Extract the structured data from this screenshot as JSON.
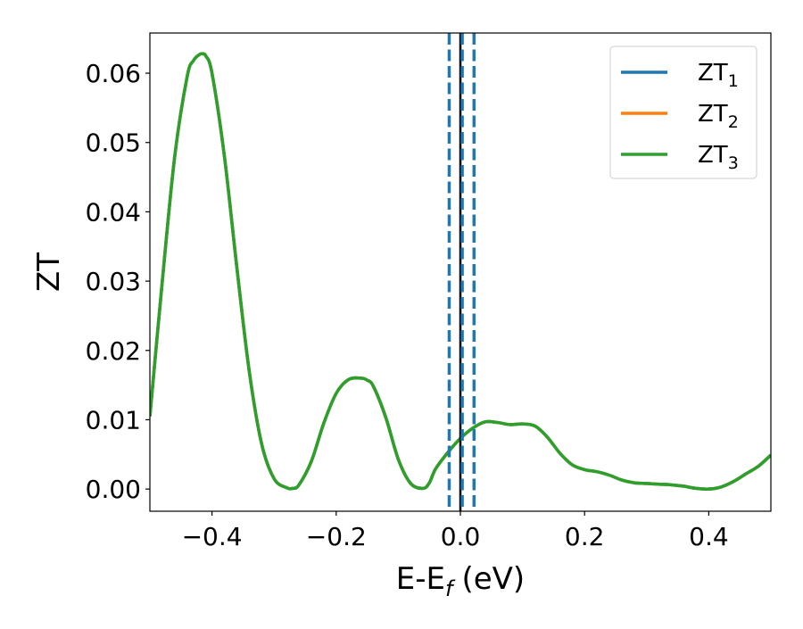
{
  "chart_data": {
    "type": "line",
    "title": "",
    "xlabel": "E-E",
    "xlabel_sub": "f",
    "xlabel_unit": "(eV)",
    "ylabel": "ZT",
    "xlim": [
      -0.5,
      0.5
    ],
    "ylim": [
      -0.0032,
      0.0658
    ],
    "grid": false,
    "legend_position": "top-right",
    "xticks": [
      -0.4,
      -0.2,
      0.0,
      0.2,
      0.4
    ],
    "xtick_labels": [
      "−0.4",
      "−0.2",
      "0.0",
      "0.2",
      "0.4"
    ],
    "yticks": [
      0.0,
      0.01,
      0.02,
      0.03,
      0.04,
      0.05,
      0.06
    ],
    "ytick_labels": [
      "0.00",
      "0.01",
      "0.02",
      "0.03",
      "0.04",
      "0.05",
      "0.06"
    ],
    "x": [
      -0.5,
      -0.48,
      -0.46,
      -0.44,
      -0.43,
      -0.42,
      -0.415,
      -0.41,
      -0.4,
      -0.38,
      -0.36,
      -0.34,
      -0.32,
      -0.3,
      -0.28,
      -0.27,
      -0.26,
      -0.24,
      -0.22,
      -0.2,
      -0.18,
      -0.16,
      -0.15,
      -0.14,
      -0.12,
      -0.1,
      -0.08,
      -0.06,
      -0.05,
      -0.04,
      -0.02,
      0.0,
      0.02,
      0.04,
      0.06,
      0.08,
      0.1,
      0.12,
      0.14,
      0.16,
      0.18,
      0.2,
      0.22,
      0.24,
      0.26,
      0.28,
      0.3,
      0.32,
      0.34,
      0.36,
      0.38,
      0.4,
      0.42,
      0.44,
      0.46,
      0.48,
      0.5
    ],
    "series": [
      {
        "name": "ZT",
        "name_sub": "1",
        "color": "#1f77b4",
        "values": [
          0.0105,
          0.03,
          0.048,
          0.0595,
          0.0618,
          0.0627,
          0.0628,
          0.0625,
          0.06,
          0.048,
          0.032,
          0.017,
          0.0065,
          0.0015,
          0.0002,
          0.0001,
          0.0006,
          0.004,
          0.0095,
          0.0138,
          0.0158,
          0.016,
          0.0157,
          0.0148,
          0.0103,
          0.0043,
          0.0008,
          0.0001,
          0.0009,
          0.0029,
          0.0053,
          0.0073,
          0.0088,
          0.0097,
          0.0096,
          0.0093,
          0.0094,
          0.0091,
          0.0075,
          0.0052,
          0.0035,
          0.0028,
          0.0025,
          0.002,
          0.0013,
          0.0009,
          0.0008,
          0.0007,
          0.0006,
          0.0004,
          0.0001,
          0.0,
          0.0003,
          0.0011,
          0.0022,
          0.0033,
          0.0049
        ]
      },
      {
        "name": "ZT",
        "name_sub": "2",
        "color": "#ff7f0e",
        "values": [
          0.0105,
          0.03,
          0.048,
          0.0595,
          0.0618,
          0.0627,
          0.0628,
          0.0625,
          0.06,
          0.048,
          0.032,
          0.017,
          0.0065,
          0.0015,
          0.0002,
          0.0001,
          0.0006,
          0.004,
          0.0095,
          0.0138,
          0.0158,
          0.016,
          0.0157,
          0.0148,
          0.0103,
          0.0043,
          0.0008,
          0.0001,
          0.0009,
          0.0029,
          0.0053,
          0.0073,
          0.0088,
          0.0097,
          0.0096,
          0.0093,
          0.0094,
          0.0091,
          0.0075,
          0.0052,
          0.0035,
          0.0028,
          0.0025,
          0.002,
          0.0013,
          0.0009,
          0.0008,
          0.0007,
          0.0006,
          0.0004,
          0.0001,
          0.0,
          0.0003,
          0.0011,
          0.0022,
          0.0033,
          0.0049
        ]
      },
      {
        "name": "ZT",
        "name_sub": "3",
        "color": "#2ca02c",
        "values": [
          0.0105,
          0.03,
          0.048,
          0.0595,
          0.0618,
          0.0627,
          0.0628,
          0.0625,
          0.06,
          0.048,
          0.032,
          0.017,
          0.0065,
          0.0015,
          0.0002,
          0.0001,
          0.0006,
          0.004,
          0.0095,
          0.0138,
          0.0158,
          0.016,
          0.0157,
          0.0148,
          0.0103,
          0.0043,
          0.0008,
          0.0001,
          0.0009,
          0.0029,
          0.0053,
          0.0073,
          0.0088,
          0.0097,
          0.0096,
          0.0093,
          0.0094,
          0.0091,
          0.0075,
          0.0052,
          0.0035,
          0.0028,
          0.0025,
          0.002,
          0.0013,
          0.0009,
          0.0008,
          0.0007,
          0.0006,
          0.0004,
          0.0001,
          0.0,
          0.0003,
          0.0011,
          0.0022,
          0.0033,
          0.0049
        ]
      }
    ],
    "vertical_lines": [
      {
        "x": 0.0,
        "color": "#000000",
        "style": "solid"
      },
      {
        "x": -0.018,
        "color": "#1f77b4",
        "style": "dashed"
      },
      {
        "x": 0.003,
        "color": "#1f77b4",
        "style": "dashed"
      },
      {
        "x": 0.022,
        "color": "#1f77b4",
        "style": "dashed"
      }
    ]
  }
}
